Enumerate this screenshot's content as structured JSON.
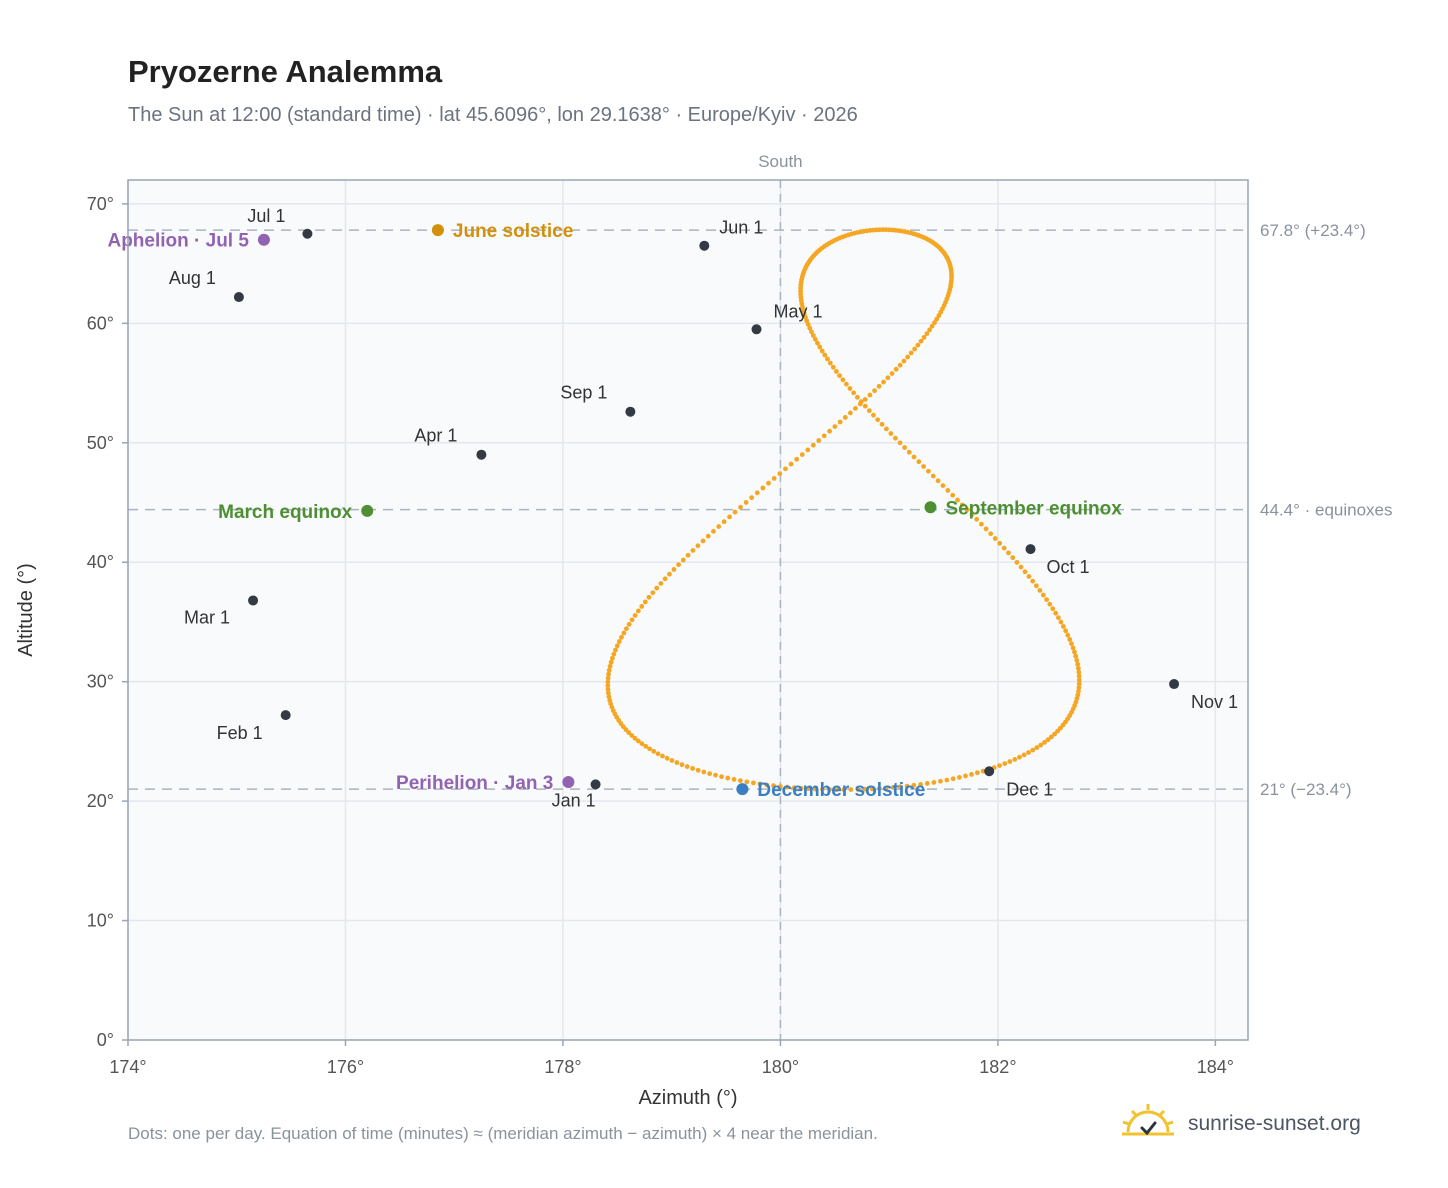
{
  "header": {
    "title": "Pryozerne Analemma",
    "subtitle": "The Sun at 12:00 (standard time) · lat 45.6096°, lon 29.1638° · Europe/Kyiv · 2026"
  },
  "footer": {
    "note": "Dots: one per day. Equation of time (minutes) ≈ (meridian azimuth − azimuth) × 4 near the meridian.",
    "brand": "sunrise-sunset.org"
  },
  "colors": {
    "curve": "#f5a623",
    "month_marker": "#333a44",
    "solstice_june": "#d4900a",
    "solstice_december": "#3a7fc1",
    "equinox": "#4f8f34",
    "apsis": "#9263b0",
    "plot_bg": "#f8fafc",
    "grid": "#e3e8ee",
    "reference_line": "#aab4c0"
  },
  "chart_data": {
    "type": "scatter",
    "xlabel": "Azimuth (°)",
    "ylabel": "Altitude (°)",
    "xlim": [
      174,
      184.3
    ],
    "ylim": [
      0,
      72
    ],
    "x_ticks": [
      "174°",
      "176°",
      "178°",
      "180°",
      "182°",
      "184°"
    ],
    "y_ticks": [
      "0°",
      "10°",
      "20°",
      "30°",
      "40°",
      "50°",
      "60°",
      "70°"
    ],
    "grid": true,
    "meridian": {
      "azimuth": 180,
      "label": "South"
    },
    "reference_lines": [
      {
        "altitude": 67.8,
        "label": "67.8° (+23.4°)"
      },
      {
        "altitude": 44.4,
        "label": "44.4° · equinoxes"
      },
      {
        "altitude": 21,
        "label": "21° (−23.4°)"
      }
    ],
    "month_markers": [
      {
        "label": "Jan 1",
        "azimuth": 178.3,
        "altitude": 21.4
      },
      {
        "label": "Feb 1",
        "azimuth": 175.45,
        "altitude": 27.2
      },
      {
        "label": "Mar 1",
        "azimuth": 175.15,
        "altitude": 36.8
      },
      {
        "label": "Apr 1",
        "azimuth": 177.25,
        "altitude": 49.0
      },
      {
        "label": "May 1",
        "azimuth": 179.78,
        "altitude": 59.5
      },
      {
        "label": "Jun 1",
        "azimuth": 179.3,
        "altitude": 66.5
      },
      {
        "label": "Jul 1",
        "azimuth": 175.65,
        "altitude": 67.5
      },
      {
        "label": "Aug 1",
        "azimuth": 175.02,
        "altitude": 62.2
      },
      {
        "label": "Sep 1",
        "azimuth": 178.62,
        "altitude": 52.6
      },
      {
        "label": "Oct 1",
        "azimuth": 182.3,
        "altitude": 41.1
      },
      {
        "label": "Nov 1",
        "azimuth": 183.62,
        "altitude": 29.8
      },
      {
        "label": "Dec 1",
        "azimuth": 181.92,
        "altitude": 22.5
      }
    ],
    "events": [
      {
        "label": "June solstice",
        "azimuth": 176.85,
        "altitude": 67.8,
        "kind": "solstice_june"
      },
      {
        "label": "December solstice",
        "azimuth": 179.65,
        "altitude": 21.0,
        "kind": "solstice_december"
      },
      {
        "label": "March equinox",
        "azimuth": 176.2,
        "altitude": 44.3,
        "kind": "equinox"
      },
      {
        "label": "September equinox",
        "azimuth": 181.38,
        "altitude": 44.6,
        "kind": "equinox"
      },
      {
        "label": "Aphelion · Jul 5",
        "azimuth": 175.25,
        "altitude": 67.0,
        "kind": "apsis"
      },
      {
        "label": "Perihelion · Jan 3",
        "azimuth": 178.05,
        "altitude": 21.6,
        "kind": "apsis"
      }
    ]
  }
}
